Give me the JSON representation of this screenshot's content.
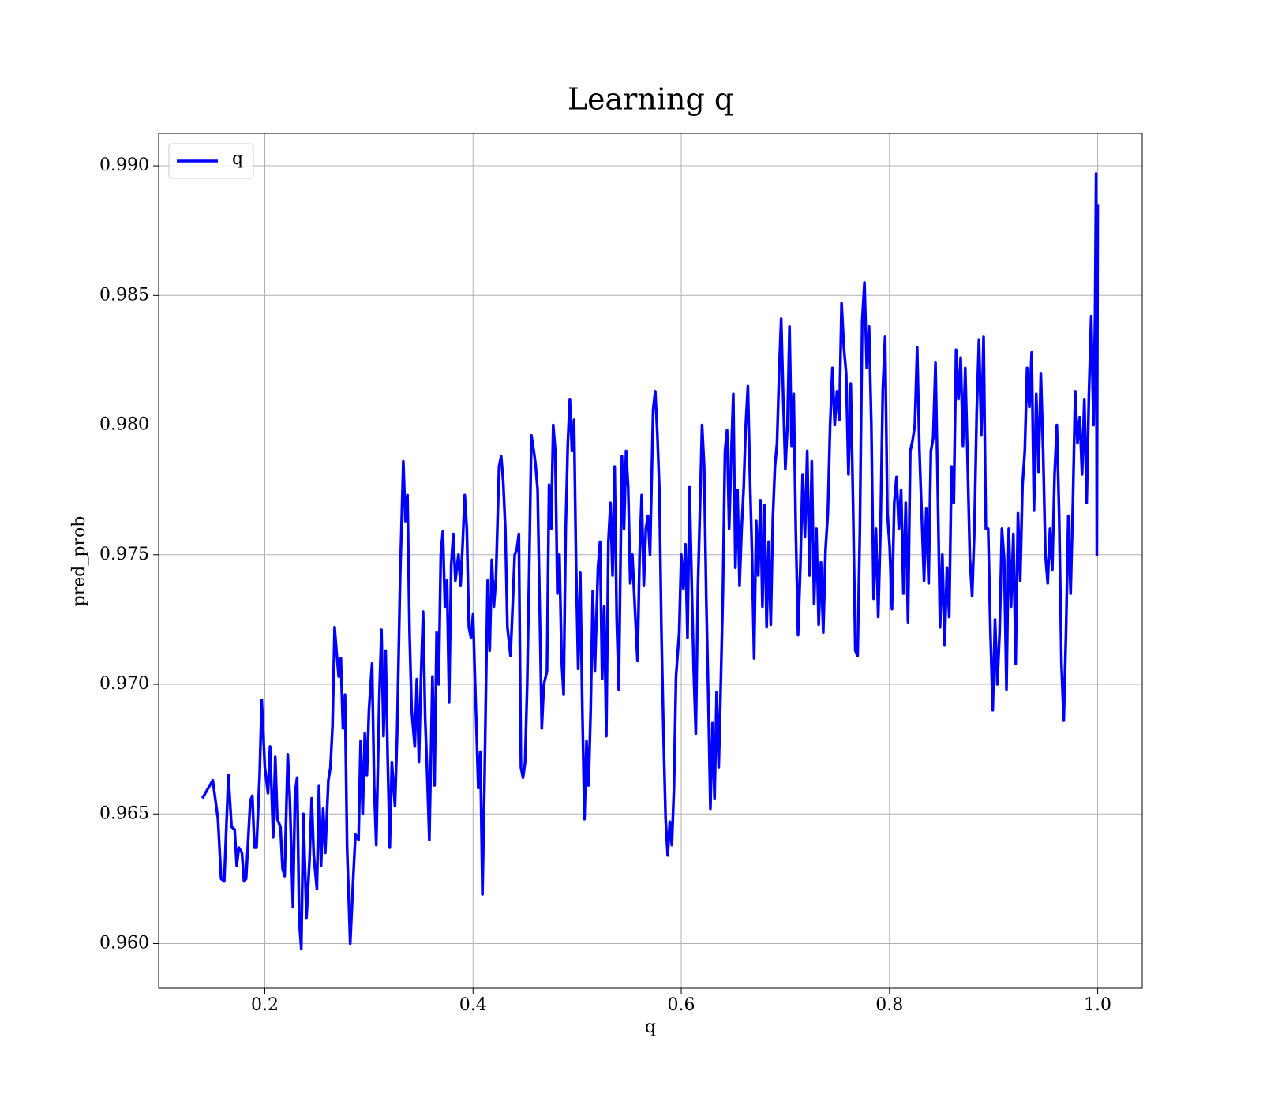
{
  "chart_data": {
    "type": "line",
    "title": "Learning q",
    "xlabel": "q",
    "ylabel": "pred_prob",
    "x": [
      0.14,
      0.15,
      0.155,
      0.158,
      0.161,
      0.165,
      0.168,
      0.171,
      0.173,
      0.175,
      0.178,
      0.18,
      0.182,
      0.186,
      0.188,
      0.19,
      0.192,
      0.195,
      0.197,
      0.2,
      0.203,
      0.205,
      0.208,
      0.21,
      0.212,
      0.215,
      0.217,
      0.219,
      0.222,
      0.224,
      0.227,
      0.229,
      0.231,
      0.233,
      0.235,
      0.237,
      0.24,
      0.243,
      0.245,
      0.247,
      0.25,
      0.252,
      0.254,
      0.256,
      0.258,
      0.261,
      0.263,
      0.265,
      0.267,
      0.269,
      0.271,
      0.273,
      0.275,
      0.277,
      0.279,
      0.282,
      0.285,
      0.287,
      0.29,
      0.292,
      0.294,
      0.296,
      0.298,
      0.3,
      0.303,
      0.305,
      0.307,
      0.31,
      0.312,
      0.314,
      0.316,
      0.318,
      0.32,
      0.322,
      0.325,
      0.327,
      0.33,
      0.333,
      0.335,
      0.337,
      0.339,
      0.341,
      0.344,
      0.346,
      0.348,
      0.35,
      0.352,
      0.354,
      0.356,
      0.358,
      0.361,
      0.363,
      0.365,
      0.367,
      0.369,
      0.371,
      0.373,
      0.375,
      0.377,
      0.379,
      0.381,
      0.383,
      0.386,
      0.388,
      0.39,
      0.392,
      0.394,
      0.396,
      0.398,
      0.4,
      0.402,
      0.405,
      0.407,
      0.409,
      0.411,
      0.414,
      0.416,
      0.418,
      0.42,
      0.422,
      0.425,
      0.427,
      0.429,
      0.431,
      0.433,
      0.436,
      0.438,
      0.44,
      0.442,
      0.444,
      0.446,
      0.448,
      0.45,
      0.452,
      0.454,
      0.456,
      0.458,
      0.46,
      0.462,
      0.464,
      0.466,
      0.468,
      0.471,
      0.473,
      0.475,
      0.477,
      0.479,
      0.481,
      0.483,
      0.485,
      0.487,
      0.489,
      0.491,
      0.493,
      0.495,
      0.497,
      0.499,
      0.501,
      0.503,
      0.505,
      0.507,
      0.509,
      0.511,
      0.513,
      0.515,
      0.517,
      0.52,
      0.522,
      0.524,
      0.526,
      0.528,
      0.53,
      0.532,
      0.534,
      0.536,
      0.538,
      0.54,
      0.543,
      0.545,
      0.547,
      0.549,
      0.551,
      0.553,
      0.556,
      0.558,
      0.56,
      0.562,
      0.564,
      0.566,
      0.568,
      0.57,
      0.573,
      0.575,
      0.577,
      0.579,
      0.581,
      0.583,
      0.585,
      0.587,
      0.589,
      0.591,
      0.593,
      0.595,
      0.598,
      0.6,
      0.602,
      0.604,
      0.606,
      0.608,
      0.61,
      0.612,
      0.614,
      0.616,
      0.618,
      0.62,
      0.622,
      0.624,
      0.626,
      0.628,
      0.63,
      0.632,
      0.634,
      0.636,
      0.638,
      0.64,
      0.642,
      0.644,
      0.646,
      0.648,
      0.65,
      0.652,
      0.654,
      0.656,
      0.658,
      0.66,
      0.662,
      0.664,
      0.666,
      0.668,
      0.67,
      0.672,
      0.674,
      0.676,
      0.678,
      0.68,
      0.682,
      0.684,
      0.686,
      0.688,
      0.69,
      0.692,
      0.694,
      0.696,
      0.698,
      0.7,
      0.702,
      0.704,
      0.706,
      0.708,
      0.71,
      0.7122,
      0.7144,
      0.7166,
      0.7188,
      0.721,
      0.7232,
      0.7254,
      0.7276,
      0.7298,
      0.732,
      0.7342,
      0.7364,
      0.7386,
      0.7408,
      0.743,
      0.7452,
      0.7474,
      0.7496,
      0.7518,
      0.754,
      0.7562,
      0.7584,
      0.7606,
      0.7628,
      0.765,
      0.7672,
      0.7694,
      0.7716,
      0.7738,
      0.776,
      0.7782,
      0.7804,
      0.7826,
      0.7848,
      0.787,
      0.7892,
      0.7914,
      0.7936,
      0.7958,
      0.798,
      0.8002,
      0.8024,
      0.8046,
      0.8068,
      0.809,
      0.8112,
      0.8134,
      0.8156,
      0.8178,
      0.82,
      0.8222,
      0.8244,
      0.8266,
      0.8288,
      0.831,
      0.8332,
      0.8354,
      0.8376,
      0.8398,
      0.842,
      0.8442,
      0.8464,
      0.8486,
      0.8508,
      0.853,
      0.8552,
      0.8574,
      0.8596,
      0.8618,
      0.864,
      0.8662,
      0.8684,
      0.8706,
      0.8728,
      0.875,
      0.8772,
      0.8794,
      0.8816,
      0.8838,
      0.886,
      0.8882,
      0.8904,
      0.8926,
      0.8948,
      0.897,
      0.8992,
      0.9014,
      0.9036,
      0.9058,
      0.908,
      0.9102,
      0.9124,
      0.9146,
      0.9168,
      0.919,
      0.9212,
      0.9234,
      0.9256,
      0.9278,
      0.93,
      0.9322,
      0.9344,
      0.9366,
      0.9388,
      0.941,
      0.9432,
      0.9454,
      0.9476,
      0.9498,
      0.952,
      0.9542,
      0.9564,
      0.9586,
      0.9608,
      0.963,
      0.9652,
      0.9674,
      0.9696,
      0.9718,
      0.974,
      0.9762,
      0.9784,
      0.9806,
      0.9828,
      0.985,
      0.9872,
      0.9894,
      0.9916,
      0.9938,
      0.996,
      0.9975,
      0.9985,
      0.9992,
      1.0
    ],
    "series": [
      {
        "name": "q",
        "color": "#0000ff",
        "values": [
          0.9656,
          0.9663,
          0.9648,
          0.9625,
          0.9624,
          0.9665,
          0.9645,
          0.9644,
          0.963,
          0.9637,
          0.9635,
          0.9624,
          0.9625,
          0.9655,
          0.9657,
          0.9637,
          0.9637,
          0.9665,
          0.9694,
          0.9668,
          0.9658,
          0.9676,
          0.9641,
          0.9672,
          0.9648,
          0.9645,
          0.9629,
          0.9626,
          0.9673,
          0.9656,
          0.9614,
          0.9658,
          0.9664,
          0.9609,
          0.9598,
          0.965,
          0.961,
          0.9633,
          0.9656,
          0.9634,
          0.9621,
          0.9661,
          0.963,
          0.9652,
          0.9635,
          0.9663,
          0.9668,
          0.9684,
          0.9722,
          0.9712,
          0.9703,
          0.971,
          0.9683,
          0.9696,
          0.9637,
          0.96,
          0.9626,
          0.9642,
          0.964,
          0.9678,
          0.965,
          0.9681,
          0.9665,
          0.969,
          0.9708,
          0.9661,
          0.9638,
          0.9696,
          0.9721,
          0.968,
          0.9713,
          0.9671,
          0.9637,
          0.967,
          0.9653,
          0.968,
          0.9742,
          0.9786,
          0.9763,
          0.9773,
          0.972,
          0.969,
          0.9676,
          0.9702,
          0.967,
          0.9703,
          0.9728,
          0.9687,
          0.9665,
          0.964,
          0.9703,
          0.9661,
          0.972,
          0.97,
          0.975,
          0.9759,
          0.973,
          0.974,
          0.9693,
          0.9746,
          0.9758,
          0.974,
          0.975,
          0.9738,
          0.9754,
          0.9773,
          0.976,
          0.9722,
          0.9718,
          0.9727,
          0.97,
          0.966,
          0.9674,
          0.9619,
          0.9662,
          0.974,
          0.9713,
          0.9748,
          0.973,
          0.9741,
          0.9784,
          0.9788,
          0.9778,
          0.976,
          0.9722,
          0.9711,
          0.973,
          0.975,
          0.9752,
          0.9758,
          0.9668,
          0.9664,
          0.967,
          0.97,
          0.9746,
          0.9796,
          0.9791,
          0.9785,
          0.9775,
          0.973,
          0.9683,
          0.97,
          0.9705,
          0.9777,
          0.976,
          0.98,
          0.979,
          0.9735,
          0.975,
          0.971,
          0.9696,
          0.976,
          0.9793,
          0.981,
          0.979,
          0.9802,
          0.9745,
          0.9706,
          0.9743,
          0.969,
          0.9648,
          0.9678,
          0.9661,
          0.969,
          0.9736,
          0.9705,
          0.9745,
          0.9755,
          0.9702,
          0.973,
          0.968,
          0.9755,
          0.977,
          0.9742,
          0.9784,
          0.9725,
          0.9698,
          0.9788,
          0.976,
          0.979,
          0.9776,
          0.9739,
          0.975,
          0.9725,
          0.9709,
          0.975,
          0.9773,
          0.9738,
          0.976,
          0.9765,
          0.975,
          0.9806,
          0.9813,
          0.9797,
          0.9775,
          0.972,
          0.968,
          0.9648,
          0.9634,
          0.9647,
          0.9638,
          0.966,
          0.9703,
          0.972,
          0.975,
          0.9737,
          0.9754,
          0.9718,
          0.9776,
          0.974,
          0.9705,
          0.9681,
          0.9737,
          0.9768,
          0.98,
          0.9784,
          0.9734,
          0.9695,
          0.9652,
          0.9685,
          0.9656,
          0.9697,
          0.9668,
          0.97,
          0.9735,
          0.979,
          0.9798,
          0.976,
          0.9788,
          0.9812,
          0.9745,
          0.9775,
          0.9738,
          0.976,
          0.9776,
          0.98,
          0.9815,
          0.978,
          0.975,
          0.971,
          0.9763,
          0.9742,
          0.9771,
          0.973,
          0.9769,
          0.9722,
          0.9755,
          0.9723,
          0.9764,
          0.9784,
          0.9793,
          0.982,
          0.9841,
          0.981,
          0.9783,
          0.98,
          0.9838,
          0.9792,
          0.9812,
          0.976,
          0.9719,
          0.9745,
          0.9781,
          0.9757,
          0.979,
          0.9742,
          0.9786,
          0.9731,
          0.976,
          0.9723,
          0.9747,
          0.972,
          0.9752,
          0.9766,
          0.98,
          0.9822,
          0.98,
          0.9813,
          0.9802,
          0.9847,
          0.983,
          0.982,
          0.9781,
          0.9816,
          0.977,
          0.9713,
          0.9711,
          0.976,
          0.984,
          0.9855,
          0.9822,
          0.9838,
          0.98,
          0.9733,
          0.976,
          0.9726,
          0.976,
          0.9814,
          0.9834,
          0.9766,
          0.9753,
          0.9729,
          0.977,
          0.978,
          0.976,
          0.9775,
          0.9735,
          0.977,
          0.9724,
          0.979,
          0.9794,
          0.98,
          0.983,
          0.979,
          0.9765,
          0.974,
          0.9768,
          0.9739,
          0.979,
          0.9795,
          0.9824,
          0.9775,
          0.9722,
          0.975,
          0.9715,
          0.9745,
          0.9726,
          0.9784,
          0.977,
          0.9829,
          0.981,
          0.9826,
          0.9792,
          0.9822,
          0.9787,
          0.9749,
          0.9734,
          0.976,
          0.9805,
          0.9833,
          0.9796,
          0.9834,
          0.976,
          0.976,
          0.972,
          0.969,
          0.9725,
          0.97,
          0.972,
          0.976,
          0.9748,
          0.9698,
          0.976,
          0.973,
          0.9758,
          0.9708,
          0.9766,
          0.974,
          0.9777,
          0.979,
          0.9822,
          0.9807,
          0.9828,
          0.9767,
          0.9812,
          0.9782,
          0.982,
          0.979,
          0.975,
          0.9739,
          0.976,
          0.9744,
          0.9781,
          0.98,
          0.9765,
          0.9708,
          0.9686,
          0.972,
          0.9765,
          0.9735,
          0.977,
          0.9813,
          0.9793,
          0.9803,
          0.9781,
          0.981,
          0.977,
          0.9812,
          0.9842,
          0.98,
          0.9842,
          0.9897,
          0.975,
          0.9885
        ]
      }
    ],
    "xlim": [
      0.098,
      1.0428
    ],
    "ylim": [
      0.95828,
      0.99125
    ],
    "xticks": [
      0.2,
      0.4,
      0.6,
      0.8,
      {
        "value": 1.0,
        "label": "1.0"
      }
    ],
    "yticks": [
      {
        "value": 0.96,
        "label": "0.960"
      },
      0.965,
      {
        "value": 0.97,
        "label": "0.970"
      },
      0.975,
      {
        "value": 0.98,
        "label": "0.980"
      },
      0.985,
      {
        "value": 0.99,
        "label": "0.990"
      }
    ],
    "grid": true,
    "legend": "upper left"
  }
}
